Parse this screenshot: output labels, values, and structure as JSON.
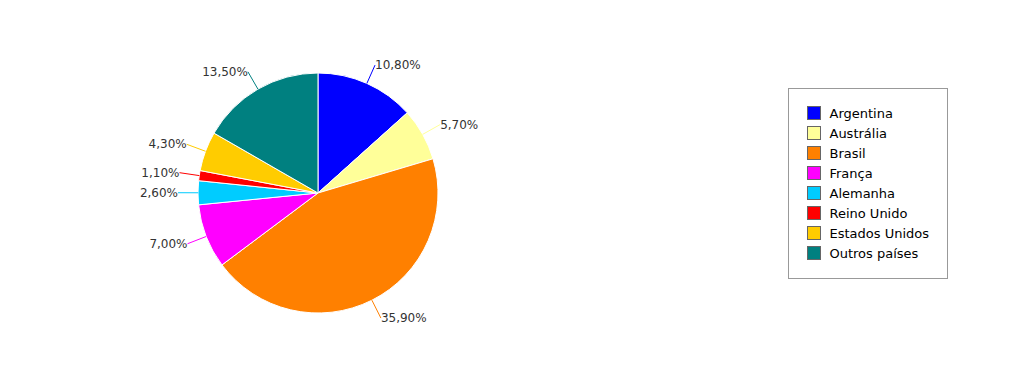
{
  "chart_data": {
    "type": "pie",
    "categories": [
      "Argentina",
      "Austrália",
      "Brasil",
      "França",
      "Alemanha",
      "Reino Unido",
      "Estados Unidos",
      "Outros países"
    ],
    "values": [
      10.8,
      5.7,
      35.9,
      7.0,
      2.6,
      1.1,
      4.3,
      13.5
    ],
    "value_labels": [
      "10,80%",
      "5,70%",
      "35,90%",
      "7,00%",
      "2,60%",
      "1,10%",
      "4,30%",
      "13,50%"
    ],
    "colors": [
      "#0000FF",
      "#FFFF99",
      "#FF8000",
      "#FF00FF",
      "#00CCFF",
      "#FF0000",
      "#FFCC00",
      "#008080"
    ],
    "data_labels": true,
    "legend": "right"
  }
}
